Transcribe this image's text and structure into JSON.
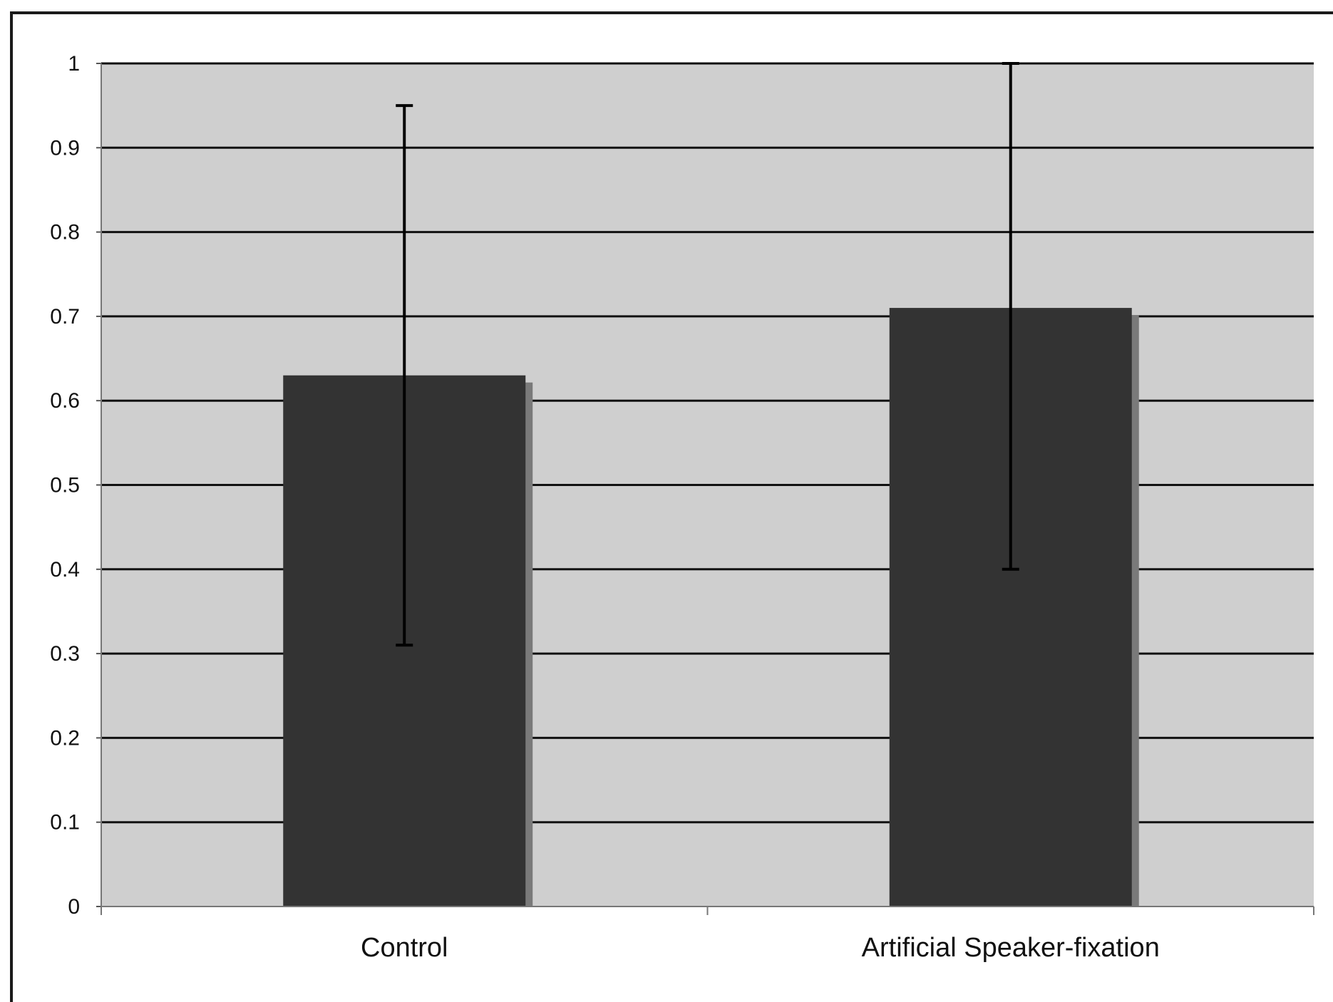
{
  "chart_data": {
    "type": "bar",
    "title": "",
    "xlabel": "",
    "ylabel": "",
    "categories": [
      "Control",
      "Artificial Speaker-fixation"
    ],
    "values": [
      0.63,
      0.71
    ],
    "error_bars": [
      {
        "low": 0.31,
        "high": 0.95
      },
      {
        "low": 0.4,
        "high": 1.0
      }
    ],
    "ylim": [
      0,
      1
    ],
    "yticks": [
      "0",
      "0.1",
      "0.2",
      "0.3",
      "0.4",
      "0.5",
      "0.6",
      "0.7",
      "0.8",
      "0.9",
      "1"
    ],
    "grid": true,
    "legend": "none",
    "colors": {
      "bar": "#333333",
      "bar_shadow": "#7a7a7a",
      "plot_background": "#cfcfcf",
      "gridline": "#111111",
      "error_bar": "#000000"
    }
  }
}
